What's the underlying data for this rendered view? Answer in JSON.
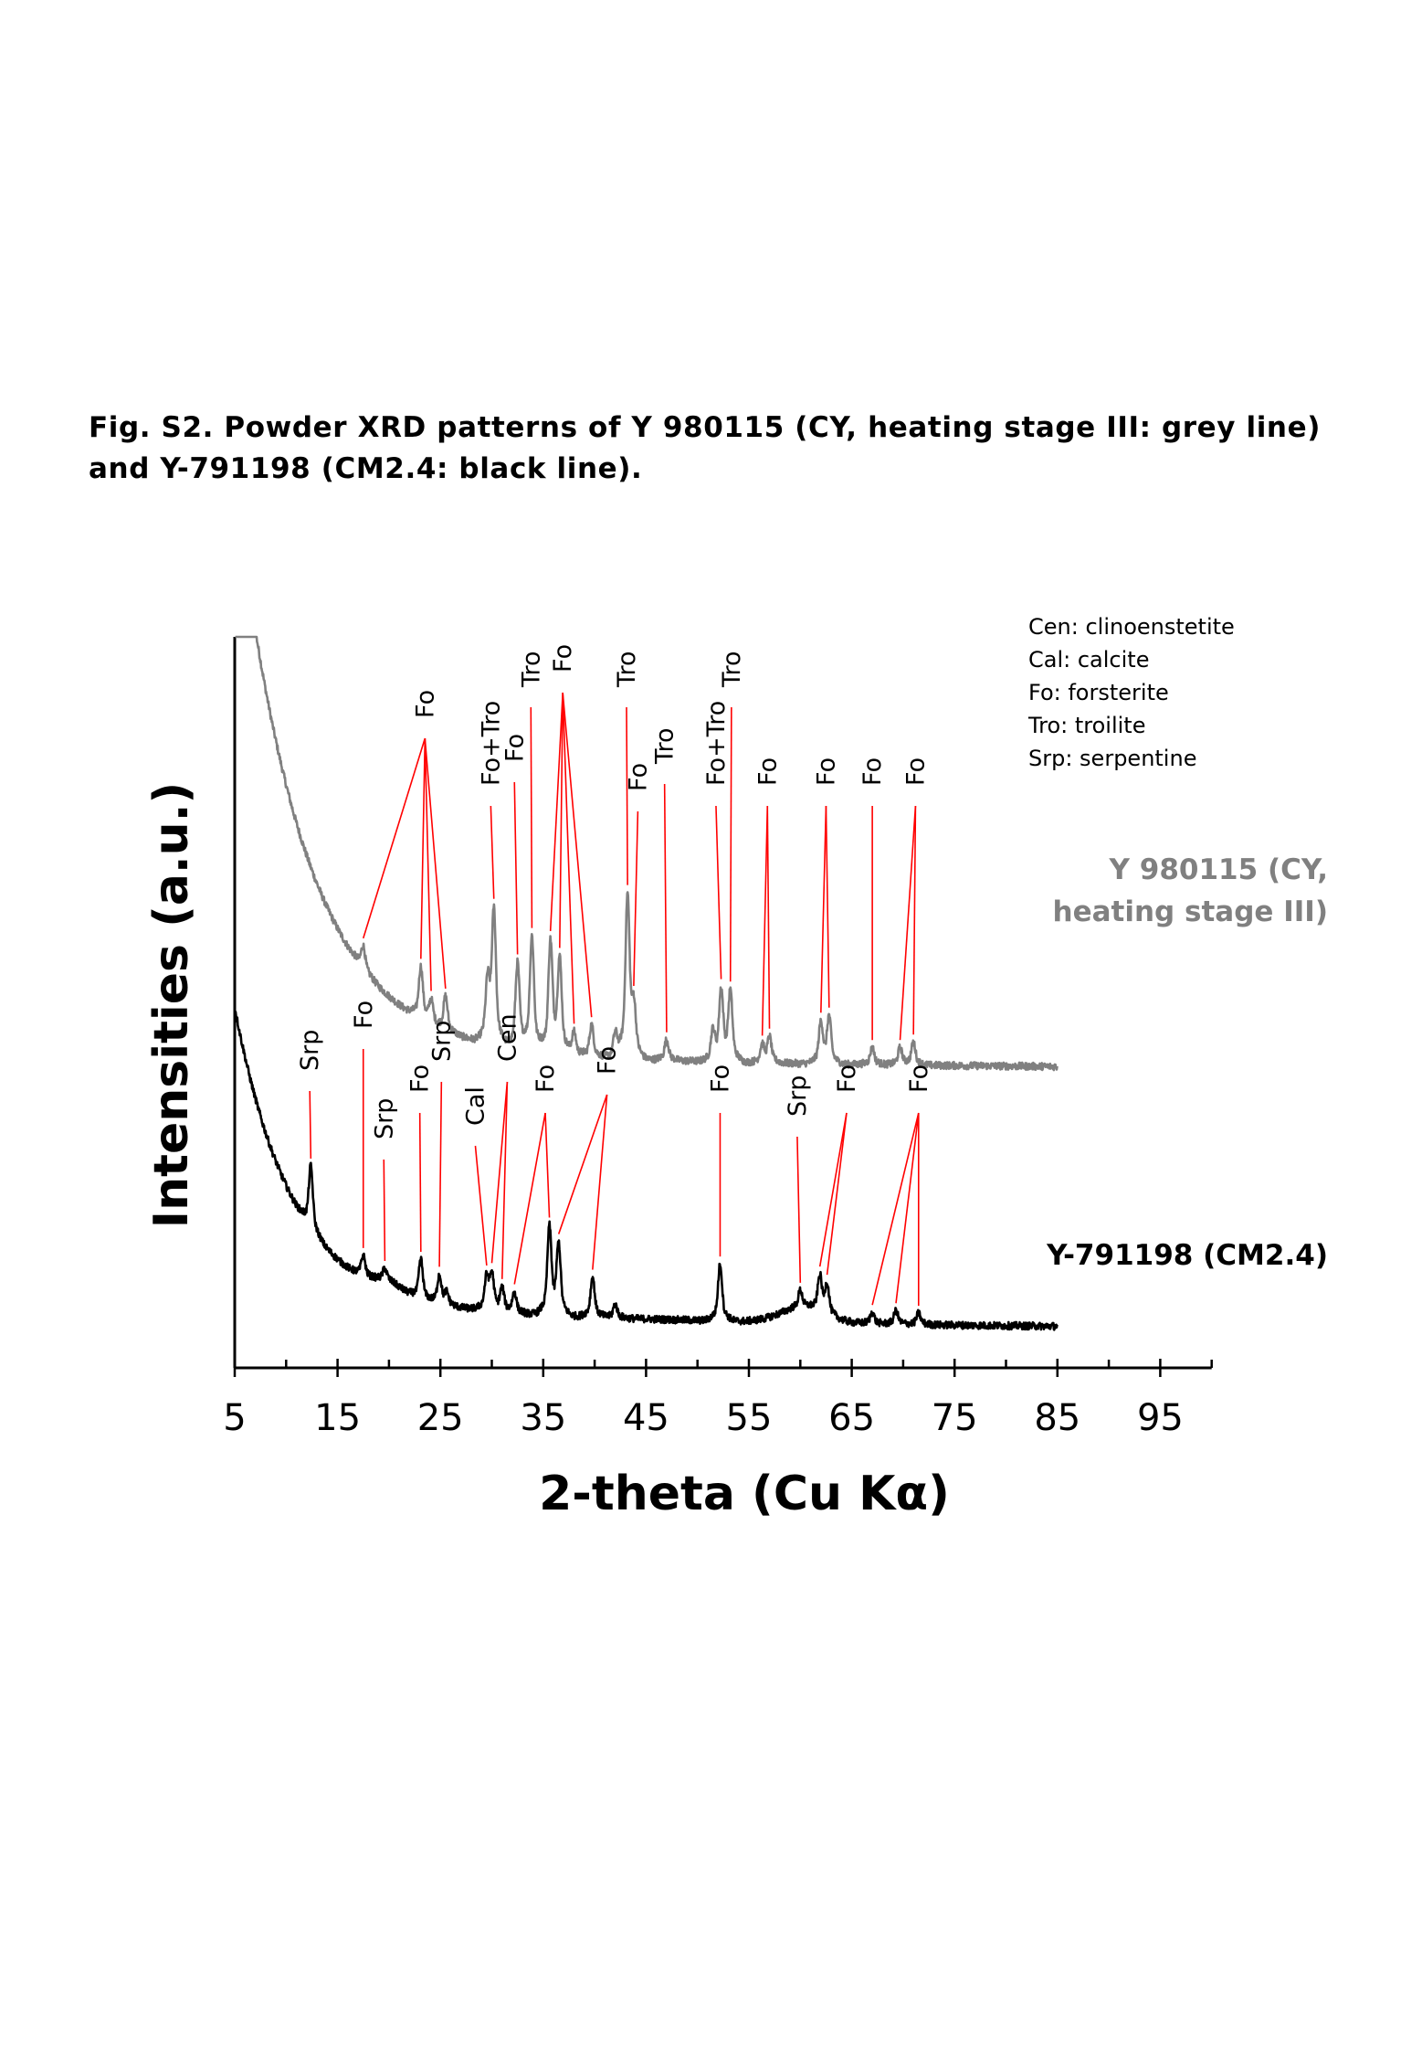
{
  "caption": {
    "line1": "Fig. S2. Powder XRD patterns of Y 980115 (CY, heating stage III: grey line)",
    "line2": "and Y-791198 (CM2.4: black line)."
  },
  "chart_data": {
    "type": "line",
    "title": "",
    "xlabel": "2-theta (Cu Kα)",
    "ylabel": "Intensities (a.u.)",
    "xlim": [
      5,
      100
    ],
    "ylim": [
      0,
      1
    ],
    "x_ticks": [
      5,
      15,
      25,
      35,
      45,
      55,
      65,
      75,
      85,
      95
    ],
    "x_tick_labels": [
      "5",
      "15",
      "25",
      "35",
      "45",
      "55",
      "65",
      "75",
      "85",
      "95"
    ],
    "x_minor_ticks": [
      10,
      20,
      30,
      40,
      50,
      60,
      70,
      80,
      90,
      100
    ],
    "grid": false,
    "legend": {
      "placement": "top-right",
      "entries": [
        "Cen: clinoenstetite",
        "Cal: calcite",
        "Fo: forsterite",
        "Tro: troilite",
        "Srp: serpentine"
      ]
    },
    "series": [
      {
        "name": "Y 980115 (CY, heating stage III)",
        "label_line1": "Y 980115 (CY,",
        "label_line2": "heating stage III)",
        "color": "#808080",
        "x_range": [
          5,
          85
        ],
        "baseline": 0.28,
        "background_decay": {
          "amplitude": 0.62,
          "scale_deg": 6.5
        },
        "tail_level": 0.255,
        "peaks": [
          {
            "x": 17.5,
            "h": 0.02
          },
          {
            "x": 23.1,
            "h": 0.045
          },
          {
            "x": 24.1,
            "h": 0.02
          },
          {
            "x": 25.5,
            "h": 0.03
          },
          {
            "x": 29.6,
            "h": 0.05
          },
          {
            "x": 30.2,
            "h": 0.115
          },
          {
            "x": 32.5,
            "h": 0.075
          },
          {
            "x": 33.9,
            "h": 0.1
          },
          {
            "x": 35.7,
            "h": 0.095
          },
          {
            "x": 36.6,
            "h": 0.08
          },
          {
            "x": 38.0,
            "h": 0.02
          },
          {
            "x": 39.7,
            "h": 0.028
          },
          {
            "x": 42.0,
            "h": 0.02
          },
          {
            "x": 43.2,
            "h": 0.14
          },
          {
            "x": 43.8,
            "h": 0.04
          },
          {
            "x": 47.0,
            "h": 0.018
          },
          {
            "x": 51.5,
            "h": 0.025
          },
          {
            "x": 52.3,
            "h": 0.06
          },
          {
            "x": 53.2,
            "h": 0.06
          },
          {
            "x": 56.3,
            "h": 0.015
          },
          {
            "x": 57.0,
            "h": 0.022
          },
          {
            "x": 62.0,
            "h": 0.035
          },
          {
            "x": 62.8,
            "h": 0.04
          },
          {
            "x": 67.0,
            "h": 0.015
          },
          {
            "x": 69.7,
            "h": 0.015
          },
          {
            "x": 71.0,
            "h": 0.02
          }
        ],
        "annotations": [
          {
            "label": "Fo",
            "peaks": [
              17.5,
              23.1,
              24.1,
              25.5
            ]
          },
          {
            "label": "Fo+Tro",
            "peaks": [
              30.2
            ]
          },
          {
            "label": "Fo",
            "peaks": [
              32.5
            ]
          },
          {
            "label": "Tro",
            "peaks": [
              33.9
            ]
          },
          {
            "label": "Fo",
            "peaks": [
              35.7,
              36.6,
              38.0,
              39.7
            ]
          },
          {
            "label": "Tro",
            "peaks": [
              43.2
            ]
          },
          {
            "label": "Fo",
            "peaks": [
              43.8
            ]
          },
          {
            "label": "Tro",
            "peaks": [
              47.0
            ]
          },
          {
            "label": "Fo+Tro",
            "peaks": [
              52.3
            ]
          },
          {
            "label": "Tro",
            "peaks": [
              53.2
            ]
          },
          {
            "label": "Fo",
            "peaks": [
              56.3,
              57.0
            ]
          },
          {
            "label": "Fo",
            "peaks": [
              62.0,
              62.8
            ]
          },
          {
            "label": "Fo",
            "peaks": [
              67.0
            ]
          },
          {
            "label": "Fo",
            "peaks": [
              69.7,
              71.0
            ]
          }
        ]
      },
      {
        "name": "Y-791198 (CM2.4)",
        "label_line1": "Y-791198 (CM2.4)",
        "color": "#000000",
        "x_range": [
          5,
          85
        ],
        "baseline": 0.0,
        "background_decay": {
          "amplitude": 0.32,
          "scale_deg": 5.5
        },
        "tail_level": -0.03,
        "peaks": [
          {
            "x": 12.4,
            "h": 0.055
          },
          {
            "x": 17.5,
            "h": 0.018
          },
          {
            "x": 19.6,
            "h": 0.01
          },
          {
            "x": 23.1,
            "h": 0.035
          },
          {
            "x": 24.9,
            "h": 0.025
          },
          {
            "x": 25.6,
            "h": 0.01
          },
          {
            "x": 29.5,
            "h": 0.028
          },
          {
            "x": 30.0,
            "h": 0.03
          },
          {
            "x": 31.0,
            "h": 0.02
          },
          {
            "x": 32.2,
            "h": 0.018
          },
          {
            "x": 35.6,
            "h": 0.075
          },
          {
            "x": 36.5,
            "h": 0.06
          },
          {
            "x": 39.8,
            "h": 0.035
          },
          {
            "x": 42.0,
            "h": 0.012
          },
          {
            "x": 52.2,
            "h": 0.05
          },
          {
            "x": 60.0,
            "h": 0.015
          },
          {
            "x": 61.9,
            "h": 0.03
          },
          {
            "x": 62.6,
            "h": 0.025
          },
          {
            "x": 67.0,
            "h": 0.01
          },
          {
            "x": 69.3,
            "h": 0.012
          },
          {
            "x": 71.5,
            "h": 0.01
          }
        ],
        "broad_humps": [
          {
            "x": 20.0,
            "h": 0.01,
            "w": 1.4
          },
          {
            "x": 60.3,
            "h": 0.017,
            "w": 2.2
          }
        ],
        "annotations": [
          {
            "label": "Srp",
            "peaks": [
              12.4
            ]
          },
          {
            "label": "Fo",
            "peaks": [
              17.5
            ]
          },
          {
            "label": "Srp",
            "peaks": [
              19.6
            ]
          },
          {
            "label": "Fo",
            "peaks": [
              23.1
            ]
          },
          {
            "label": "Srp",
            "peaks": [
              24.9
            ]
          },
          {
            "label": "Cal",
            "peaks": [
              29.5
            ]
          },
          {
            "label": "Cen",
            "peaks": [
              30.0,
              31.0
            ]
          },
          {
            "label": "Fo",
            "peaks": [
              32.2,
              35.6
            ]
          },
          {
            "label": "Fo",
            "peaks": [
              36.5,
              39.8
            ]
          },
          {
            "label": "Fo",
            "peaks": [
              52.2
            ]
          },
          {
            "label": "Srp",
            "peaks": [
              60.0
            ]
          },
          {
            "label": "Fo",
            "peaks": [
              61.9,
              62.6
            ]
          },
          {
            "label": "Fo",
            "peaks": [
              67.0,
              69.3,
              71.5
            ]
          }
        ]
      }
    ],
    "annotation_line_color": "#ff0000"
  }
}
